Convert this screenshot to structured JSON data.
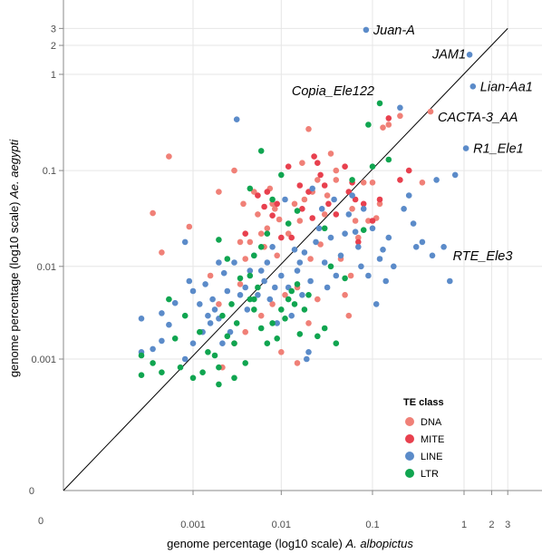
{
  "chart_data": {
    "type": "scatter",
    "xlabel": "genome percentage (log10 scale)",
    "xlabel_species": "A. albopictus",
    "ylabel": "genome percentage (log10 scale)",
    "ylabel_species": "Ae. aegypti",
    "x_scale": "log10",
    "y_scale": "log10",
    "x_ticks": [
      "0",
      "0.001",
      "0.01",
      "0.1",
      "1",
      "2",
      "3"
    ],
    "y_ticks": [
      "0",
      "0.001",
      "0.01",
      "0.1",
      "1",
      "2",
      "3"
    ],
    "grid": true,
    "identity_line": true,
    "legend": {
      "title": "TE class",
      "position": "bottom-right",
      "entries": [
        {
          "name": "DNA",
          "color": "#f08077"
        },
        {
          "name": "MITE",
          "color": "#e8404e"
        },
        {
          "name": "LINE",
          "color": "#5b8bc9"
        },
        {
          "name": "LTR",
          "color": "#10a550"
        }
      ]
    },
    "annotations": [
      {
        "label": "Juan-A",
        "x": 0.085,
        "y": 2.9
      },
      {
        "label": "JAM1",
        "x": 1.15,
        "y": 1.6
      },
      {
        "label": "Lian-Aa1",
        "x": 1.25,
        "y": 0.75
      },
      {
        "label": "Copia_Ele122",
        "x": 0.12,
        "y": 0.5
      },
      {
        "label": "CACTA-3_AA",
        "x": 0.43,
        "y": 0.41
      },
      {
        "label": "R1_Ele1",
        "x": 1.05,
        "y": 0.17
      },
      {
        "label": "RTE_Ele3",
        "x": 0.6,
        "y": 0.013
      }
    ],
    "series": [
      {
        "name": "DNA",
        "points": [
          [
            0.0003,
            0.036
          ],
          [
            0.0004,
            0.014
          ],
          [
            0.0005,
            0.14
          ],
          [
            0.0009,
            0.026
          ],
          [
            0.0016,
            0.008
          ],
          [
            0.002,
            0.06
          ],
          [
            0.003,
            0.1
          ],
          [
            0.0035,
            0.018
          ],
          [
            0.0038,
            0.045
          ],
          [
            0.004,
            0.012
          ],
          [
            0.0045,
            0.018
          ],
          [
            0.005,
            0.06
          ],
          [
            0.0055,
            0.035
          ],
          [
            0.006,
            0.022
          ],
          [
            0.0065,
            0.016
          ],
          [
            0.007,
            0.025
          ],
          [
            0.0075,
            0.065
          ],
          [
            0.008,
            0.045
          ],
          [
            0.0085,
            0.04
          ],
          [
            0.009,
            0.013
          ],
          [
            0.0095,
            0.031
          ],
          [
            0.011,
            0.005
          ],
          [
            0.012,
            0.022
          ],
          [
            0.014,
            0.045
          ],
          [
            0.015,
            0.006
          ],
          [
            0.016,
            0.03
          ],
          [
            0.017,
            0.12
          ],
          [
            0.018,
            0.05
          ],
          [
            0.02,
            0.27
          ],
          [
            0.021,
            0.012
          ],
          [
            0.022,
            0.06
          ],
          [
            0.025,
            0.08
          ],
          [
            0.027,
            0.017
          ],
          [
            0.03,
            0.035
          ],
          [
            0.032,
            0.055
          ],
          [
            0.035,
            0.15
          ],
          [
            0.04,
            0.1
          ],
          [
            0.04,
            0.08
          ],
          [
            0.045,
            0.012
          ],
          [
            0.05,
            0.005
          ],
          [
            0.055,
            0.003
          ],
          [
            0.058,
            0.008
          ],
          [
            0.06,
            0.04
          ],
          [
            0.065,
            0.03
          ],
          [
            0.07,
            0.02
          ],
          [
            0.08,
            0.075
          ],
          [
            0.09,
            0.03
          ],
          [
            0.1,
            0.075
          ],
          [
            0.11,
            0.032
          ],
          [
            0.12,
            0.045
          ],
          [
            0.13,
            0.28
          ],
          [
            0.15,
            0.3
          ],
          [
            0.2,
            0.37
          ],
          [
            0.35,
            0.075
          ],
          [
            0.43,
            0.41
          ],
          [
            0.0022,
            0.0008
          ],
          [
            0.003,
            0.0015
          ],
          [
            0.004,
            0.002
          ],
          [
            0.006,
            0.003
          ],
          [
            0.008,
            0.004
          ],
          [
            0.01,
            0.0012
          ],
          [
            0.015,
            0.0009
          ],
          [
            0.02,
            0.0025
          ],
          [
            0.025,
            0.0045
          ],
          [
            0.002,
            0.004
          ],
          [
            0.0035,
            0.0065
          ]
        ]
      },
      {
        "name": "MITE",
        "points": [
          [
            0.004,
            0.022
          ],
          [
            0.0055,
            0.055
          ],
          [
            0.0065,
            0.042
          ],
          [
            0.007,
            0.06
          ],
          [
            0.008,
            0.034
          ],
          [
            0.009,
            0.045
          ],
          [
            0.01,
            0.02
          ],
          [
            0.012,
            0.11
          ],
          [
            0.013,
            0.02
          ],
          [
            0.016,
            0.07
          ],
          [
            0.017,
            0.04
          ],
          [
            0.02,
            0.06
          ],
          [
            0.022,
            0.032
          ],
          [
            0.023,
            0.14
          ],
          [
            0.025,
            0.12
          ],
          [
            0.027,
            0.09
          ],
          [
            0.03,
            0.07
          ],
          [
            0.033,
            0.045
          ],
          [
            0.04,
            0.035
          ],
          [
            0.05,
            0.11
          ],
          [
            0.055,
            0.06
          ],
          [
            0.06,
            0.075
          ],
          [
            0.065,
            0.05
          ],
          [
            0.07,
            0.018
          ],
          [
            0.08,
            0.045
          ],
          [
            0.1,
            0.03
          ],
          [
            0.12,
            0.05
          ],
          [
            0.15,
            0.35
          ],
          [
            0.2,
            0.08
          ],
          [
            0.25,
            0.1
          ]
        ]
      },
      {
        "name": "LINE",
        "points": [
          [
            0.0002,
            0.0028
          ],
          [
            0.0002,
            0.0012
          ],
          [
            0.0003,
            0.0013
          ],
          [
            0.0004,
            0.0016
          ],
          [
            0.0004,
            0.0032
          ],
          [
            0.0005,
            0.0024
          ],
          [
            0.0006,
            0.0041
          ],
          [
            0.0008,
            0.018
          ],
          [
            0.0009,
            0.007
          ],
          [
            0.0008,
            0.001
          ],
          [
            0.001,
            0.0015
          ],
          [
            0.001,
            0.0055
          ],
          [
            0.0012,
            0.004
          ],
          [
            0.0013,
            0.002
          ],
          [
            0.0014,
            0.0065
          ],
          [
            0.0015,
            0.003
          ],
          [
            0.0016,
            0.0025
          ],
          [
            0.0017,
            0.0045
          ],
          [
            0.0018,
            0.0035
          ],
          [
            0.002,
            0.011
          ],
          [
            0.002,
            0.0028
          ],
          [
            0.0022,
            0.0015
          ],
          [
            0.0023,
            0.0085
          ],
          [
            0.0025,
            0.0055
          ],
          [
            0.0027,
            0.002
          ],
          [
            0.003,
            0.011
          ],
          [
            0.0032,
            0.34
          ],
          [
            0.0035,
            0.005
          ],
          [
            0.004,
            0.006
          ],
          [
            0.0042,
            0.0035
          ],
          [
            0.0045,
            0.009
          ],
          [
            0.005,
            0.013
          ],
          [
            0.0055,
            0.005
          ],
          [
            0.006,
            0.009
          ],
          [
            0.0065,
            0.007
          ],
          [
            0.007,
            0.011
          ],
          [
            0.0075,
            0.0045
          ],
          [
            0.008,
            0.016
          ],
          [
            0.0085,
            0.006
          ],
          [
            0.009,
            0.0025
          ],
          [
            0.01,
            0.008
          ],
          [
            0.011,
            0.05
          ],
          [
            0.012,
            0.006
          ],
          [
            0.013,
            0.003
          ],
          [
            0.014,
            0.015
          ],
          [
            0.015,
            0.009
          ],
          [
            0.016,
            0.011
          ],
          [
            0.017,
            0.005
          ],
          [
            0.018,
            0.014
          ],
          [
            0.019,
            0.001
          ],
          [
            0.02,
            0.0012
          ],
          [
            0.021,
            0.007
          ],
          [
            0.022,
            0.065
          ],
          [
            0.024,
            0.018
          ],
          [
            0.026,
            0.025
          ],
          [
            0.028,
            0.04
          ],
          [
            0.03,
            0.011
          ],
          [
            0.032,
            0.006
          ],
          [
            0.035,
            0.02
          ],
          [
            0.038,
            0.05
          ],
          [
            0.04,
            0.008
          ],
          [
            0.045,
            0.013
          ],
          [
            0.05,
            0.022
          ],
          [
            0.055,
            0.035
          ],
          [
            0.06,
            0.055
          ],
          [
            0.065,
            0.023
          ],
          [
            0.07,
            0.016
          ],
          [
            0.075,
            0.01
          ],
          [
            0.08,
            0.04
          ],
          [
            0.085,
            2.9
          ],
          [
            0.09,
            0.008
          ],
          [
            0.1,
            0.025
          ],
          [
            0.11,
            0.004
          ],
          [
            0.12,
            0.012
          ],
          [
            0.13,
            0.015
          ],
          [
            0.14,
            0.007
          ],
          [
            0.15,
            0.02
          ],
          [
            0.17,
            0.01
          ],
          [
            0.2,
            0.45
          ],
          [
            0.22,
            0.04
          ],
          [
            0.25,
            0.055
          ],
          [
            0.28,
            0.028
          ],
          [
            0.3,
            0.016
          ],
          [
            0.35,
            0.018
          ],
          [
            0.45,
            0.013
          ],
          [
            0.5,
            0.08
          ],
          [
            0.6,
            0.016
          ],
          [
            0.7,
            0.007
          ],
          [
            0.8,
            0.09
          ],
          [
            1.05,
            0.17
          ],
          [
            1.15,
            1.6
          ],
          [
            1.25,
            0.75
          ]
        ]
      },
      {
        "name": "LTR",
        "points": [
          [
            0.0002,
            0.00065
          ],
          [
            0.0002,
            0.0011
          ],
          [
            0.0003,
            0.0009
          ],
          [
            0.0004,
            0.0007
          ],
          [
            0.0005,
            0.0045
          ],
          [
            0.0006,
            0.0017
          ],
          [
            0.0007,
            0.0008
          ],
          [
            0.0008,
            0.003
          ],
          [
            0.001,
            0.0006
          ],
          [
            0.0012,
            0.002
          ],
          [
            0.0013,
            0.0007
          ],
          [
            0.0015,
            0.0012
          ],
          [
            0.0018,
            0.0011
          ],
          [
            0.002,
            0.0008
          ],
          [
            0.0022,
            0.003
          ],
          [
            0.0025,
            0.0018
          ],
          [
            0.0028,
            0.004
          ],
          [
            0.003,
            0.0015
          ],
          [
            0.0032,
            0.0025
          ],
          [
            0.004,
            0.0009
          ],
          [
            0.0045,
            0.0045
          ],
          [
            0.005,
            0.0035
          ],
          [
            0.0055,
            0.006
          ],
          [
            0.006,
            0.0022
          ],
          [
            0.007,
            0.0015
          ],
          [
            0.008,
            0.0025
          ],
          [
            0.009,
            0.0017
          ],
          [
            0.01,
            0.0035
          ],
          [
            0.011,
            0.0028
          ],
          [
            0.012,
            0.0045
          ],
          [
            0.013,
            0.0055
          ],
          [
            0.014,
            0.004
          ],
          [
            0.015,
            0.0065
          ],
          [
            0.016,
            0.0019
          ],
          [
            0.018,
            0.0035
          ],
          [
            0.02,
            0.005
          ],
          [
            0.025,
            0.0018
          ],
          [
            0.03,
            0.0022
          ],
          [
            0.04,
            0.0015
          ],
          [
            0.05,
            0.0075
          ],
          [
            0.006,
            0.16
          ],
          [
            0.008,
            0.05
          ],
          [
            0.01,
            0.09
          ],
          [
            0.015,
            0.038
          ],
          [
            0.03,
            0.025
          ],
          [
            0.035,
            0.01
          ],
          [
            0.06,
            0.08
          ],
          [
            0.08,
            0.024
          ],
          [
            0.09,
            0.3
          ],
          [
            0.1,
            0.11
          ],
          [
            0.12,
            0.5
          ],
          [
            0.15,
            0.13
          ],
          [
            0.002,
            0.019
          ],
          [
            0.0025,
            0.012
          ],
          [
            0.0035,
            0.0075
          ],
          [
            0.0045,
            0.008
          ],
          [
            0.005,
            0.013
          ],
          [
            0.006,
            0.016
          ],
          [
            0.007,
            0.022
          ],
          [
            0.0045,
            0.065
          ],
          [
            0.012,
            0.028
          ],
          [
            0.005,
            0.0045
          ],
          [
            0.002,
            0.0005
          ],
          [
            0.003,
            0.0006
          ]
        ]
      }
    ]
  }
}
